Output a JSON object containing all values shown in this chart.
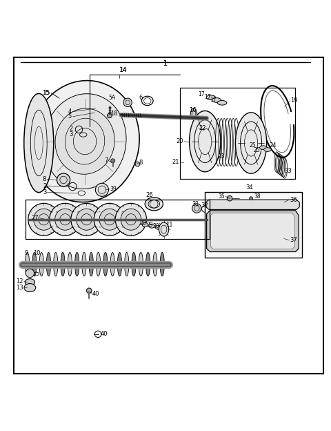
{
  "bg_color": "#ffffff",
  "border_color": "#000000",
  "fig_width": 4.8,
  "fig_height": 6.24,
  "dpi": 100,
  "outer_border": [
    0.04,
    0.02,
    0.94,
    0.96
  ]
}
